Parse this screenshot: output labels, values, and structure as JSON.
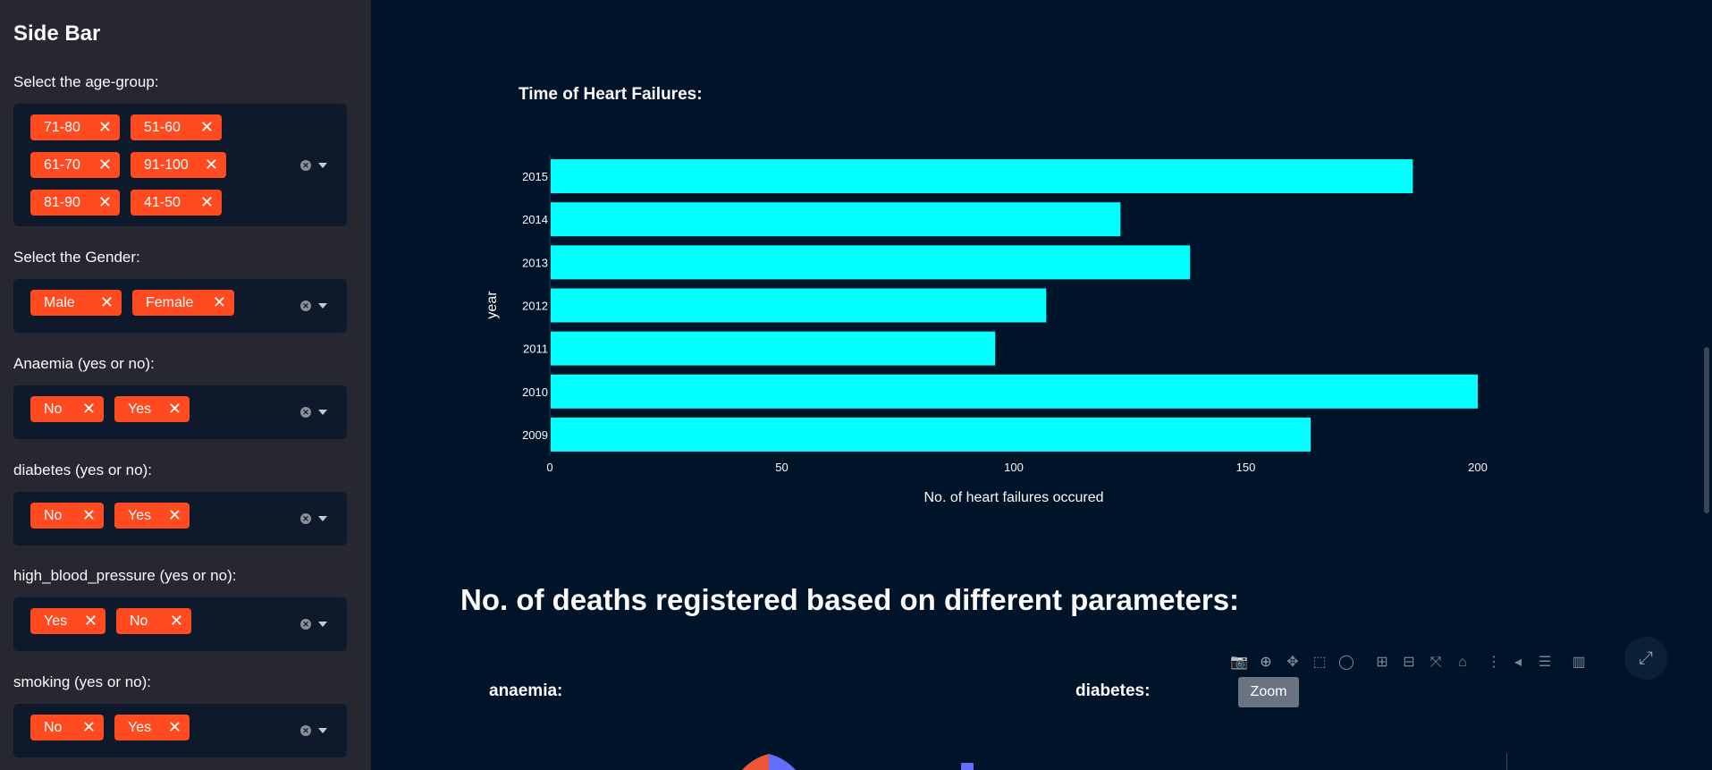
{
  "sidebar": {
    "title": "Side Bar",
    "filters": [
      {
        "label": "Select the age-group:",
        "tags": [
          "71-80",
          "51-60",
          "61-70",
          "91-100",
          "81-90",
          "41-50"
        ]
      },
      {
        "label": "Select the Gender:",
        "tags": [
          "Male",
          "Female"
        ]
      },
      {
        "label": "Anaemia (yes or no):",
        "tags": [
          "No",
          "Yes"
        ]
      },
      {
        "label": "diabetes (yes or no):",
        "tags": [
          "No",
          "Yes"
        ]
      },
      {
        "label": "high_blood_pressure (yes or no):",
        "tags": [
          "Yes",
          "No"
        ]
      },
      {
        "label": "smoking (yes or no):",
        "tags": [
          "No",
          "Yes"
        ]
      }
    ],
    "remove_glyph": "✕",
    "clear_glyph": "✕"
  },
  "main": {
    "section_title": "No. of deaths registered based on different parameters:",
    "subchart_titles": [
      "anaemia:",
      "diabetes:"
    ],
    "tooltip": "Zoom"
  },
  "colors": {
    "tag": "#ff4b1f",
    "bar": "#00ffff",
    "pie_a": "#ef553b",
    "pie_b": "#636efa"
  },
  "chart_data": {
    "type": "bar",
    "orientation": "horizontal",
    "title": "Time of Heart Failures:",
    "categories": [
      "2009",
      "2010",
      "2011",
      "2012",
      "2013",
      "2014",
      "2015"
    ],
    "values": [
      164,
      200,
      96,
      107,
      138,
      123,
      186
    ],
    "xlabel": "No. of heart failures occured",
    "ylabel": "year",
    "xlim": [
      0,
      210
    ],
    "xticks": [
      0,
      50,
      100,
      150,
      200
    ]
  }
}
